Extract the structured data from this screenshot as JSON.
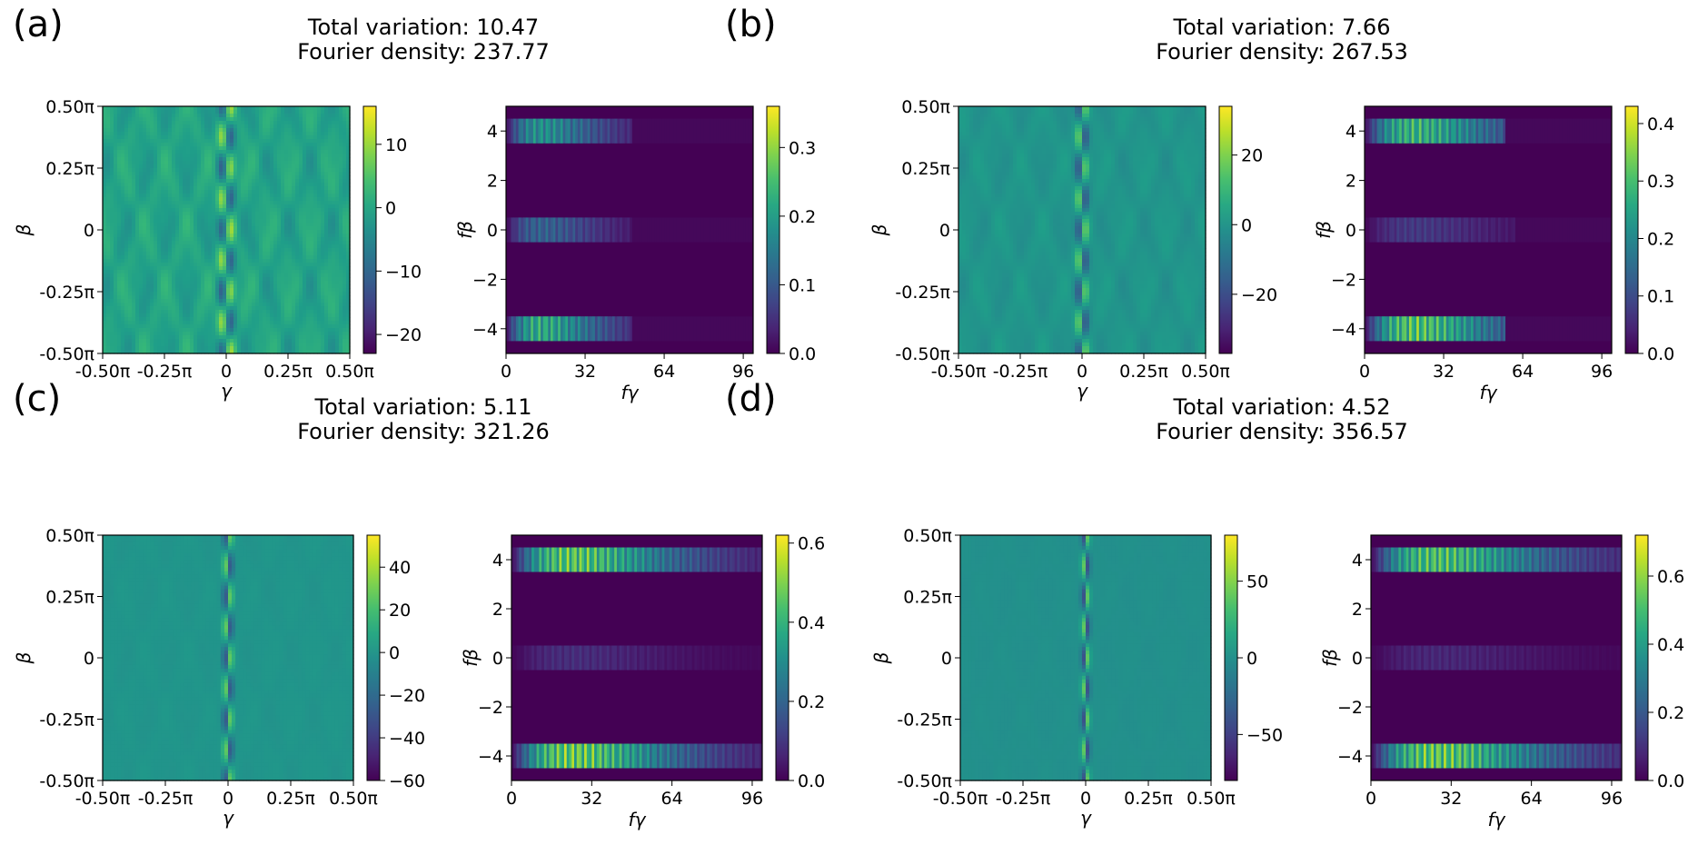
{
  "chart_data": [
    {
      "panel": "(a)",
      "title_lines": [
        "Total variation: 10.47",
        "Fourier density: 237.77"
      ],
      "landscape": {
        "type": "heatmap",
        "xlabel": "γ",
        "ylabel": "β",
        "xticks": [
          "-0.50π",
          "-0.25π",
          "0",
          "0.25π",
          "0.50π"
        ],
        "yticks": [
          "-0.50π",
          "-0.25π",
          "0",
          "0.25π",
          "0.50π"
        ],
        "xlim": [
          -0.5,
          0.5
        ],
        "ylim": [
          -0.5,
          0.5
        ],
        "colorbar": {
          "range": [
            -23,
            16
          ],
          "ticks": [
            10,
            0,
            -10,
            -20
          ],
          "tick_labels": [
            "10",
            "0",
            "−10",
            "−20"
          ]
        },
        "peak_half_width_pi": 0.028,
        "background_ripple": 0.55,
        "background_level": 0.58
      },
      "spectrum": {
        "type": "heatmap",
        "xlabel": "fγ",
        "ylabel": "fβ",
        "xticks": [
          0,
          32,
          64,
          96
        ],
        "yticks": [
          4,
          2,
          0,
          -2,
          -4
        ],
        "ytick_labels": [
          "4",
          "2",
          "0",
          "−2",
          "−4"
        ],
        "xlim": [
          0,
          100
        ],
        "ylim": [
          -5,
          5
        ],
        "colorbar": {
          "range": [
            0,
            0.36
          ],
          "ticks": [
            0.0,
            0.1,
            0.2,
            0.3
          ],
          "tick_labels": [
            "0.0",
            "0.1",
            "0.2",
            "0.3"
          ]
        },
        "bands": [
          {
            "fbeta": 4,
            "amp": 0.22,
            "cut": 50
          },
          {
            "fbeta": 0,
            "amp": 0.14,
            "cut": 50
          },
          {
            "fbeta": -4,
            "amp": 0.27,
            "cut": 50
          }
        ],
        "peak_fgamma": 14
      }
    },
    {
      "panel": "(b)",
      "title_lines": [
        "Total variation: 7.66",
        "Fourier density: 267.53"
      ],
      "landscape": {
        "type": "heatmap",
        "xlabel": "γ",
        "ylabel": "β",
        "xticks": [
          "-0.50π",
          "-0.25π",
          "0",
          "0.25π",
          "0.50π"
        ],
        "yticks": [
          "-0.50π",
          "-0.25π",
          "0",
          "0.25π",
          "0.50π"
        ],
        "xlim": [
          -0.5,
          0.5
        ],
        "ylim": [
          -0.5,
          0.5
        ],
        "colorbar": {
          "range": [
            -37,
            34
          ],
          "ticks": [
            20,
            0,
            -20
          ],
          "tick_labels": [
            "20",
            "0",
            "−20"
          ]
        },
        "peak_half_width_pi": 0.022,
        "background_ripple": 0.25,
        "background_level": 0.52
      },
      "spectrum": {
        "type": "heatmap",
        "xlabel": "fγ",
        "ylabel": "fβ",
        "xticks": [
          0,
          32,
          64,
          96
        ],
        "yticks": [
          4,
          2,
          0,
          -2,
          -4
        ],
        "ytick_labels": [
          "4",
          "2",
          "0",
          "−2",
          "−4"
        ],
        "xlim": [
          0,
          100
        ],
        "ylim": [
          -5,
          5
        ],
        "colorbar": {
          "range": [
            0,
            0.43
          ],
          "ticks": [
            0.0,
            0.1,
            0.2,
            0.3,
            0.4
          ],
          "tick_labels": [
            "0.0",
            "0.1",
            "0.2",
            "0.3",
            "0.4"
          ]
        },
        "bands": [
          {
            "fbeta": 4,
            "amp": 0.34,
            "cut": 56
          },
          {
            "fbeta": 0,
            "amp": 0.09,
            "cut": 60
          },
          {
            "fbeta": -4,
            "amp": 0.38,
            "cut": 56
          }
        ],
        "peak_fgamma": 20
      }
    },
    {
      "panel": "(c)",
      "title_lines": [
        "Total variation: 5.11",
        "Fourier density: 321.26"
      ],
      "landscape": {
        "type": "heatmap",
        "xlabel": "γ",
        "ylabel": "β",
        "xticks": [
          "-0.50π",
          "-0.25π",
          "0",
          "0.25π",
          "0.50π"
        ],
        "yticks": [
          "-0.50π",
          "-0.25π",
          "0",
          "0.25π",
          "0.50π"
        ],
        "xlim": [
          -0.5,
          0.5
        ],
        "ylim": [
          -0.5,
          0.5
        ],
        "colorbar": {
          "range": [
            -60,
            55
          ],
          "ticks": [
            40,
            20,
            0,
            -20,
            -40,
            -60
          ],
          "tick_labels": [
            "40",
            "20",
            "0",
            "−20",
            "−40",
            "−60"
          ]
        },
        "peak_half_width_pi": 0.018,
        "background_ripple": 0.08,
        "background_level": 0.52
      },
      "spectrum": {
        "type": "heatmap",
        "xlabel": "fγ",
        "ylabel": "fβ",
        "xticks": [
          0,
          32,
          64,
          96
        ],
        "yticks": [
          4,
          2,
          0,
          -2,
          -4
        ],
        "ytick_labels": [
          "4",
          "2",
          "0",
          "−2",
          "−4"
        ],
        "xlim": [
          0,
          100
        ],
        "ylim": [
          -5,
          5
        ],
        "colorbar": {
          "range": [
            0,
            0.62
          ],
          "ticks": [
            0.0,
            0.2,
            0.4,
            0.6
          ],
          "tick_labels": [
            "0.0",
            "0.2",
            "0.4",
            "0.6"
          ]
        },
        "bands": [
          {
            "fbeta": 4,
            "amp": 0.56,
            "cut": 100
          },
          {
            "fbeta": 0,
            "amp": 0.1,
            "cut": 100
          },
          {
            "fbeta": -4,
            "amp": 0.58,
            "cut": 100
          }
        ],
        "peak_fgamma": 24
      }
    },
    {
      "panel": "(d)",
      "title_lines": [
        "Total variation: 4.52",
        "Fourier density: 356.57"
      ],
      "landscape": {
        "type": "heatmap",
        "xlabel": "γ",
        "ylabel": "β",
        "xticks": [
          "-0.50π",
          "-0.25π",
          "0",
          "0.25π",
          "0.50π"
        ],
        "yticks": [
          "-0.50π",
          "-0.25π",
          "0",
          "0.25π",
          "0.50π"
        ],
        "xlim": [
          -0.5,
          0.5
        ],
        "ylim": [
          -0.5,
          0.5
        ],
        "colorbar": {
          "range": [
            -80,
            80
          ],
          "ticks": [
            50,
            0,
            -50
          ],
          "tick_labels": [
            "50",
            "0",
            "−50"
          ]
        },
        "peak_half_width_pi": 0.015,
        "background_ripple": 0.05,
        "background_level": 0.5
      },
      "spectrum": {
        "type": "heatmap",
        "xlabel": "fγ",
        "ylabel": "fβ",
        "xticks": [
          0,
          32,
          64,
          96
        ],
        "yticks": [
          4,
          2,
          0,
          -2,
          -4
        ],
        "ytick_labels": [
          "4",
          "2",
          "0",
          "−2",
          "−4"
        ],
        "xlim": [
          0,
          100
        ],
        "ylim": [
          -5,
          5
        ],
        "colorbar": {
          "range": [
            0,
            0.72
          ],
          "ticks": [
            0.0,
            0.2,
            0.4,
            0.6
          ],
          "tick_labels": [
            "0.0",
            "0.2",
            "0.4",
            "0.6"
          ]
        },
        "bands": [
          {
            "fbeta": 4,
            "amp": 0.62,
            "cut": 100
          },
          {
            "fbeta": 0,
            "amp": 0.1,
            "cut": 100
          },
          {
            "fbeta": -4,
            "amp": 0.66,
            "cut": 100
          }
        ],
        "peak_fgamma": 26
      }
    }
  ],
  "colors": {
    "viridis_low": "#440154",
    "viridis_mid": "#21918c",
    "viridis_high": "#fde725"
  }
}
